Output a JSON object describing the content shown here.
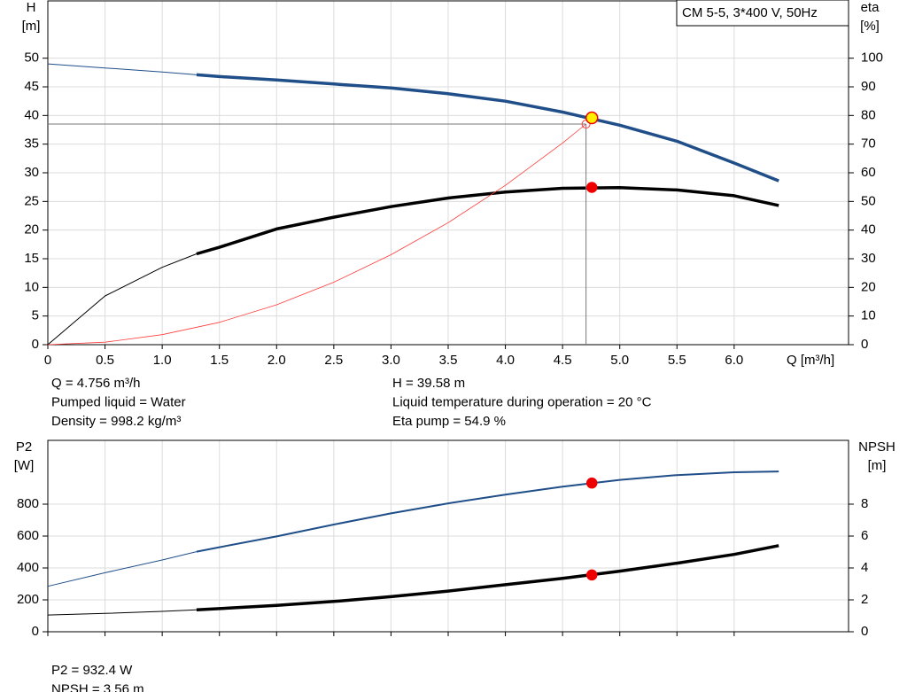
{
  "chart_data": [
    {
      "type": "line",
      "title": "CM 5-5, 3*400 V, 50Hz",
      "xlabel": "Q [m³/h]",
      "ylabel": [
        "H",
        "[m]"
      ],
      "y2label": [
        "eta",
        "[%]"
      ],
      "xlim": [
        0,
        7
      ],
      "xticks": [
        0,
        0.5,
        {
          "value": 1,
          "label": "1.0"
        },
        1.5,
        {
          "value": 2,
          "label": "2.0"
        },
        2.5,
        {
          "value": 3,
          "label": "3.0"
        },
        3.5,
        {
          "value": 4,
          "label": "4.0"
        },
        4.5,
        {
          "value": 5,
          "label": "5.0"
        },
        5.5,
        {
          "value": 6,
          "label": "6.0"
        }
      ],
      "xtick_labels": true,
      "ylim": [
        0,
        60
      ],
      "yticks": [
        0,
        5,
        10,
        15,
        20,
        25,
        30,
        35,
        40,
        45,
        50
      ],
      "y2lim": [
        0,
        120
      ],
      "y2ticks": [
        0,
        10,
        20,
        30,
        40,
        50,
        60,
        70,
        80,
        90,
        100
      ],
      "grid": true,
      "operating_x": 4.756,
      "series": [
        {
          "color": "#1f4e89",
          "line_style": "split",
          "marker_color": "#ffee00",
          "x": [
            0,
            0.5,
            1.0,
            1.3,
            1.5,
            2.0,
            2.5,
            3.0,
            3.5,
            4.0,
            4.5,
            5.0,
            5.5,
            6.0,
            6.39
          ],
          "values": [
            49,
            48.3,
            47.6,
            47.1,
            46.8,
            46.2,
            45.5,
            44.8,
            43.8,
            42.5,
            40.6,
            38.3,
            35.5,
            31.7,
            28.6
          ],
          "operating_value": 39.58
        },
        {
          "color": "#000000",
          "line_style": "split",
          "axis": "y2",
          "marker_color": "#ee0000",
          "x": [
            0,
            0.5,
            1.0,
            1.3,
            1.5,
            2.0,
            2.5,
            3.0,
            3.5,
            4.0,
            4.5,
            5.0,
            5.5,
            6.0,
            6.39
          ],
          "values": [
            0,
            17,
            27,
            31.7,
            34,
            40.4,
            44.5,
            48.2,
            51.2,
            53.3,
            54.6,
            54.8,
            54.0,
            52.0,
            48.6
          ],
          "operating_value": 54.9
        },
        {
          "color": "#ff3b3b",
          "line_style": "system",
          "x": [
            0,
            0.5,
            1.0,
            1.5,
            2.0,
            2.5,
            3.0,
            3.5,
            4.0,
            4.5,
            4.705
          ],
          "values": [
            0,
            0.43,
            1.74,
            3.9,
            6.96,
            10.9,
            15.7,
            21.3,
            27.8,
            35.2,
            38.5
          ]
        }
      ],
      "notes": [
        [
          "Q = 4.756 m³/h",
          "Pumped liquid = Water",
          "Density = 998.2 kg/m³"
        ],
        [
          "H = 39.58 m",
          "Liquid temperature during operation = 20 °C",
          "Eta pump = 54.9 %"
        ]
      ]
    },
    {
      "type": "line",
      "ylabel": [
        "P2",
        "[W]"
      ],
      "y2label": [
        "NPSH",
        "[m]"
      ],
      "xlim": [
        0,
        7
      ],
      "xticks": [
        0,
        0.5,
        1,
        1.5,
        2,
        2.5,
        3,
        3.5,
        4,
        4.5,
        5,
        5.5,
        6
      ],
      "xtick_labels": false,
      "ylim": [
        0,
        1200
      ],
      "yticks": [
        0,
        200,
        400,
        600,
        800
      ],
      "y2lim": [
        0,
        12
      ],
      "y2ticks": [
        0,
        2,
        4,
        6,
        8
      ],
      "grid": true,
      "operating_x": 4.756,
      "series": [
        {
          "color": "#1f4e89",
          "line_style": "medium",
          "marker_color": "#ee0000",
          "x": [
            0,
            0.5,
            1.0,
            1.3,
            1.5,
            2.0,
            2.5,
            3.0,
            3.5,
            4.0,
            4.5,
            5.0,
            5.5,
            6.0,
            6.39
          ],
          "values": [
            285,
            370,
            450,
            502,
            530,
            598,
            672,
            742,
            805,
            860,
            910,
            952,
            982,
            1000,
            1005
          ],
          "operating_value": 932.4
        },
        {
          "color": "#000000",
          "line_style": "split",
          "axis": "y2",
          "marker_color": "#ee0000",
          "x": [
            0,
            0.5,
            1.0,
            1.3,
            1.5,
            2.0,
            2.5,
            3.0,
            3.5,
            4.0,
            4.5,
            5.0,
            5.5,
            6.0,
            6.39
          ],
          "values": [
            1.05,
            1.15,
            1.28,
            1.38,
            1.45,
            1.65,
            1.9,
            2.2,
            2.55,
            2.95,
            3.35,
            3.8,
            4.3,
            4.85,
            5.4
          ],
          "operating_value": 3.56
        }
      ],
      "notes": [
        [
          "P2 = 932.4 W",
          "NPSH = 3.56 m"
        ]
      ]
    }
  ]
}
